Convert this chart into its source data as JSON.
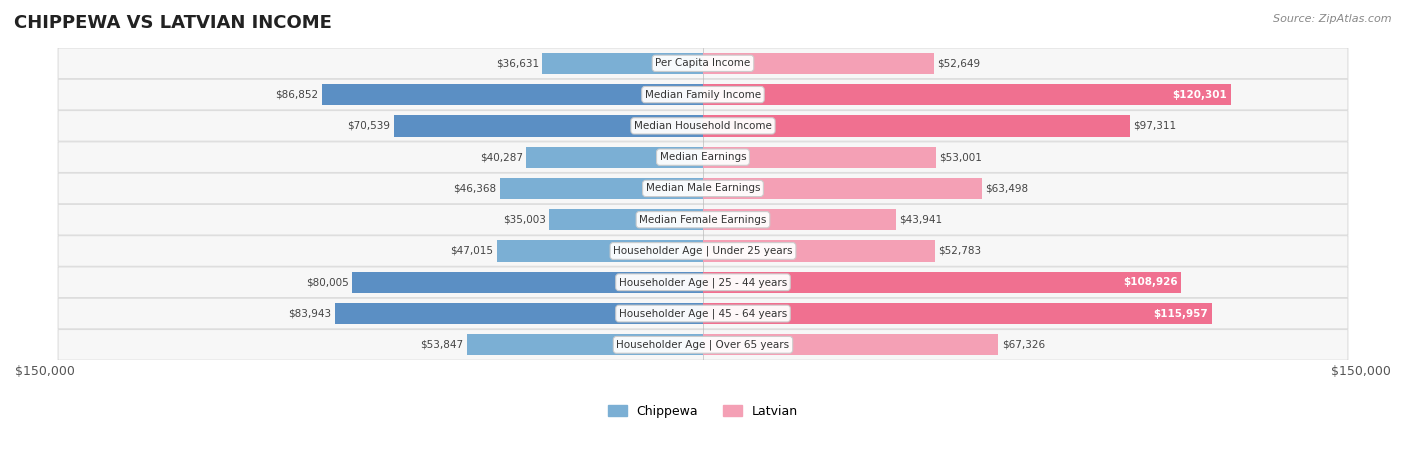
{
  "title": "CHIPPEWA VS LATVIAN INCOME",
  "source": "Source: ZipAtlas.com",
  "categories": [
    "Per Capita Income",
    "Median Family Income",
    "Median Household Income",
    "Median Earnings",
    "Median Male Earnings",
    "Median Female Earnings",
    "Householder Age | Under 25 years",
    "Householder Age | 25 - 44 years",
    "Householder Age | 45 - 64 years",
    "Householder Age | Over 65 years"
  ],
  "chippewa_values": [
    36631,
    86852,
    70539,
    40287,
    46368,
    35003,
    47015,
    80005,
    83943,
    53847
  ],
  "latvian_values": [
    52649,
    120301,
    97311,
    53001,
    63498,
    43941,
    52783,
    108926,
    115957,
    67326
  ],
  "chippewa_color": "#7BAFD4",
  "latvian_color": "#F4A0B5",
  "chippewa_strong_color": "#5B8FC4",
  "latvian_strong_color": "#F07090",
  "max_value": 150000,
  "bar_bg_color": "#F0F0F0",
  "row_bg_color": "#F7F7F7",
  "row_border_color": "#DDDDDD",
  "label_color": "#333333",
  "title_color": "#222222",
  "legend_chippewa": "Chippewa",
  "legend_latvian": "Latvian",
  "chippewa_label_color": "#555555",
  "latvian_label_color_inside": "#FFFFFF",
  "latvian_label_color_outside": "#555555"
}
